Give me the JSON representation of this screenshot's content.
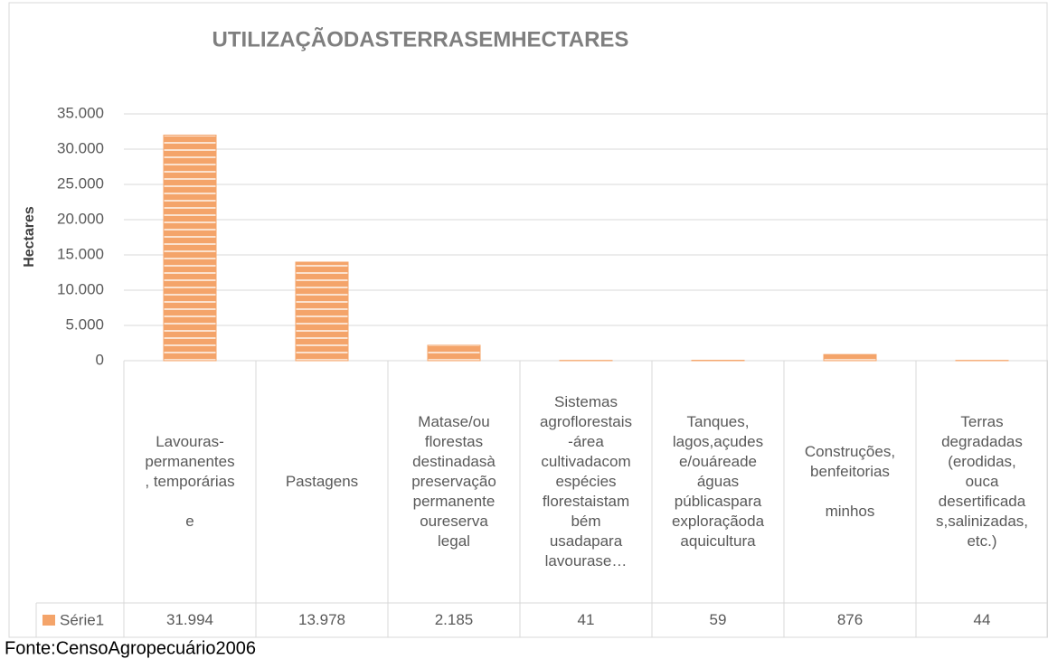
{
  "chart_data": {
    "type": "bar",
    "title": "UTILIZAÇÃODASTERRASEMHECTARES",
    "y_label": "Hectares",
    "source": "Fonte:CensoAgropecuário2006",
    "categories": [
      "Lavouras-\npermanentes\n, temporárias\n\ne",
      "Pastagens",
      "Matase/ou\nflorestas\ndestinadasà\npreservação\npermanente\noureserva\nlegal",
      "Sistemas\nagroflorestais\n-área\ncultivadacom\nespécies\nflorestaistam\nbém\nusadapara\nlavourase…",
      "Tanques,\nlagos,açudes\ne/ouáreade\náguas\npúblicaspara\nexploraçãoda\naquicultura",
      "Construções,\nbenfeitorias\n\nminhos",
      "Terras\ndegradadas\n(erodidas,\nouca\ndesertificada\ns,salinizadas,\netc.)"
    ],
    "series": [
      {
        "name": "Série1",
        "color": "#f4a46a",
        "values": [
          31994,
          13978,
          2185,
          41,
          59,
          876,
          44
        ],
        "value_labels": [
          "31.994",
          "13.978",
          "2.185",
          "41",
          "59",
          "876",
          "44"
        ]
      }
    ],
    "ylim": [
      0,
      35000
    ],
    "yticks": [
      0,
      {
        "value": 5000,
        "label": "5.000"
      },
      {
        "value": 10000,
        "label": "10.000"
      },
      {
        "value": 15000,
        "label": "15.000"
      },
      {
        "value": 20000,
        "label": "20.000"
      },
      {
        "value": 25000,
        "label": "25.000"
      },
      {
        "value": 30000,
        "label": "30.000"
      },
      {
        "value": 35000,
        "label": "35.000"
      }
    ],
    "grid": true
  }
}
